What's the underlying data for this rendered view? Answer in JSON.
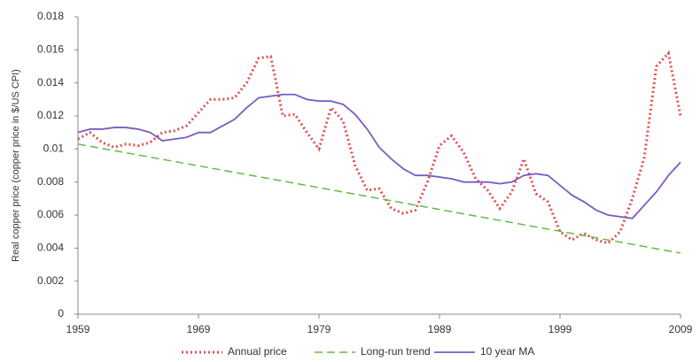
{
  "chart_data": {
    "type": "line",
    "y_label": "Real copper price (copper price in $/US CPI)",
    "x": [
      1959,
      1960,
      1961,
      1962,
      1963,
      1964,
      1965,
      1966,
      1967,
      1968,
      1969,
      1970,
      1971,
      1972,
      1973,
      1974,
      1975,
      1976,
      1977,
      1978,
      1979,
      1980,
      1981,
      1982,
      1983,
      1984,
      1985,
      1986,
      1987,
      1988,
      1989,
      1990,
      1991,
      1992,
      1993,
      1994,
      1995,
      1996,
      1997,
      1998,
      1999,
      2000,
      2001,
      2002,
      2003,
      2004,
      2005,
      2006,
      2007,
      2008,
      2009
    ],
    "series": [
      {
        "name": "Annual price",
        "color": "#e05050",
        "style": "dotted",
        "values": [
          0.0106,
          0.011,
          0.0104,
          0.0101,
          0.0103,
          0.0102,
          0.0104,
          0.011,
          0.0111,
          0.0114,
          0.0122,
          0.013,
          0.013,
          0.0131,
          0.014,
          0.0155,
          0.0156,
          0.012,
          0.0121,
          0.011,
          0.01,
          0.0125,
          0.0117,
          0.009,
          0.0075,
          0.0076,
          0.0064,
          0.0061,
          0.0063,
          0.008,
          0.0102,
          0.0108,
          0.0098,
          0.0082,
          0.0075,
          0.0064,
          0.0074,
          0.0094,
          0.0073,
          0.0068,
          0.005,
          0.0045,
          0.0049,
          0.0045,
          0.0043,
          0.005,
          0.007,
          0.0095,
          0.015,
          0.0158,
          0.012
        ]
      },
      {
        "name": "Long-run trend",
        "color": "#66bb44",
        "style": "dashed",
        "x": [
          1959,
          2009
        ],
        "values": [
          0.0103,
          0.0037
        ]
      },
      {
        "name": "10 year MA",
        "color": "#7a5cc0",
        "style": "solid",
        "values": [
          0.011,
          0.0112,
          0.0112,
          0.0113,
          0.0113,
          0.0112,
          0.011,
          0.0105,
          0.0106,
          0.0107,
          0.011,
          0.011,
          0.0114,
          0.0118,
          0.0125,
          0.0131,
          0.0132,
          0.0133,
          0.0133,
          0.013,
          0.0129,
          0.0129,
          0.0127,
          0.0121,
          0.0112,
          0.0101,
          0.0094,
          0.0088,
          0.0084,
          0.0084,
          0.0083,
          0.0082,
          0.008,
          0.008,
          0.008,
          0.0079,
          0.008,
          0.0084,
          0.0085,
          0.0084,
          0.0078,
          0.0072,
          0.0068,
          0.0063,
          0.006,
          0.0059,
          0.0058,
          0.0066,
          0.0074,
          0.0084,
          0.0092
        ]
      }
    ],
    "xlim": [
      1959,
      2009
    ],
    "xticks": [
      1959,
      1969,
      1979,
      1989,
      1999,
      2009
    ],
    "ylim": [
      0,
      0.018
    ],
    "yticks": [
      0,
      0.002,
      0.004,
      0.006,
      0.008,
      0.01,
      0.012,
      0.014,
      0.016,
      0.018
    ],
    "grid": false,
    "legend": "bottom"
  }
}
